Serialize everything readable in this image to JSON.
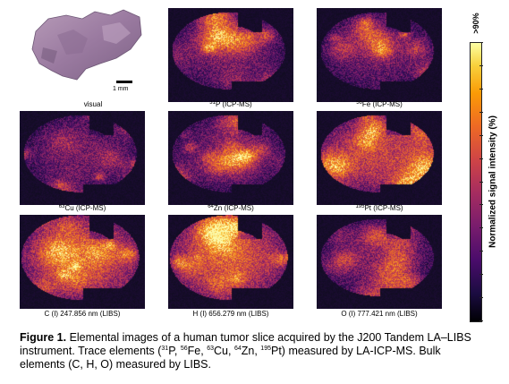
{
  "panels": [
    {
      "id": "visual",
      "label": "visual",
      "kind": "visual"
    },
    {
      "id": "p31",
      "label_sup": "31",
      "label_main": "P (ICP-MS)",
      "kind": "heat"
    },
    {
      "id": "fe56",
      "label_sup": "56",
      "label_main": "Fe (ICP-MS)",
      "kind": "heat"
    },
    {
      "id": "cu63",
      "label_sup": "63",
      "label_main": "Cu (ICP-MS)",
      "kind": "heat"
    },
    {
      "id": "zn64",
      "label_sup": "64",
      "label_main": "Zn (ICP-MS)",
      "kind": "heat"
    },
    {
      "id": "pt195",
      "label_sup": "195",
      "label_main": "Pt (ICP-MS)",
      "kind": "heat"
    },
    {
      "id": "c_libs",
      "label": "C (I) 247.856 nm (LIBS)",
      "kind": "heat"
    },
    {
      "id": "h_libs",
      "label": "H (I) 656.279 nm (LIBS)",
      "kind": "heat"
    },
    {
      "id": "o_libs",
      "label": "O (I) 777.421 nm (LIBS)",
      "kind": "heat"
    }
  ],
  "scalebar": {
    "label": "1 mm"
  },
  "colorbar": {
    "top_label": ">90%",
    "title": "Normalized signal intensity (%)",
    "colormap": "inferno-like",
    "colors": [
      "#000004",
      "#4a0c6b",
      "#a52c60",
      "#ed6925",
      "#fcffa4"
    ]
  },
  "caption": {
    "figure_label": "Figure 1.",
    "text1": " Elemental images of a human tumor slice acquired by the J200 Tandem LA–LIBS instrument. Trace elements (",
    "el1_sup": "31",
    "el1": "P, ",
    "el2_sup": "56",
    "el2": "Fe, ",
    "el3_sup": "63",
    "el3": "Cu, ",
    "el4_sup": "64",
    "el4": "Zn, ",
    "el5_sup": "195",
    "el5": "Pt)",
    "text2": " measured by LA-ICP-MS. Bulk elements (C, H, O) measured by LIBS."
  }
}
